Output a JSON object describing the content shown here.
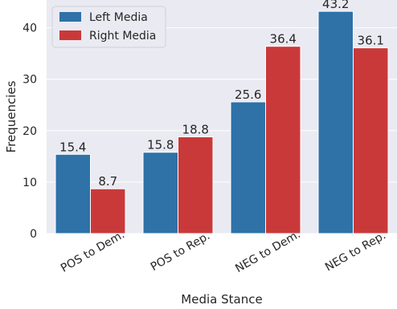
{
  "chart_data": {
    "type": "bar",
    "title": "",
    "xlabel": "Media Stance",
    "ylabel": "Frequencies",
    "categories": [
      "POS to Dem.",
      "POS to Rep.",
      "NEG to Dem.",
      "NEG to Rep."
    ],
    "series": [
      {
        "name": "Left Media",
        "values": [
          15.4,
          15.8,
          25.6,
          43.2
        ],
        "color": "#2e72a8"
      },
      {
        "name": "Right Media",
        "values": [
          8.7,
          18.8,
          36.4,
          36.1
        ],
        "color": "#c9393a"
      }
    ],
    "ylim": [
      0,
      45.4
    ],
    "yticks": [
      0,
      10,
      20,
      30,
      40
    ],
    "grid": true,
    "legend_position": "top-left",
    "background_color": "#eaeaf2"
  }
}
